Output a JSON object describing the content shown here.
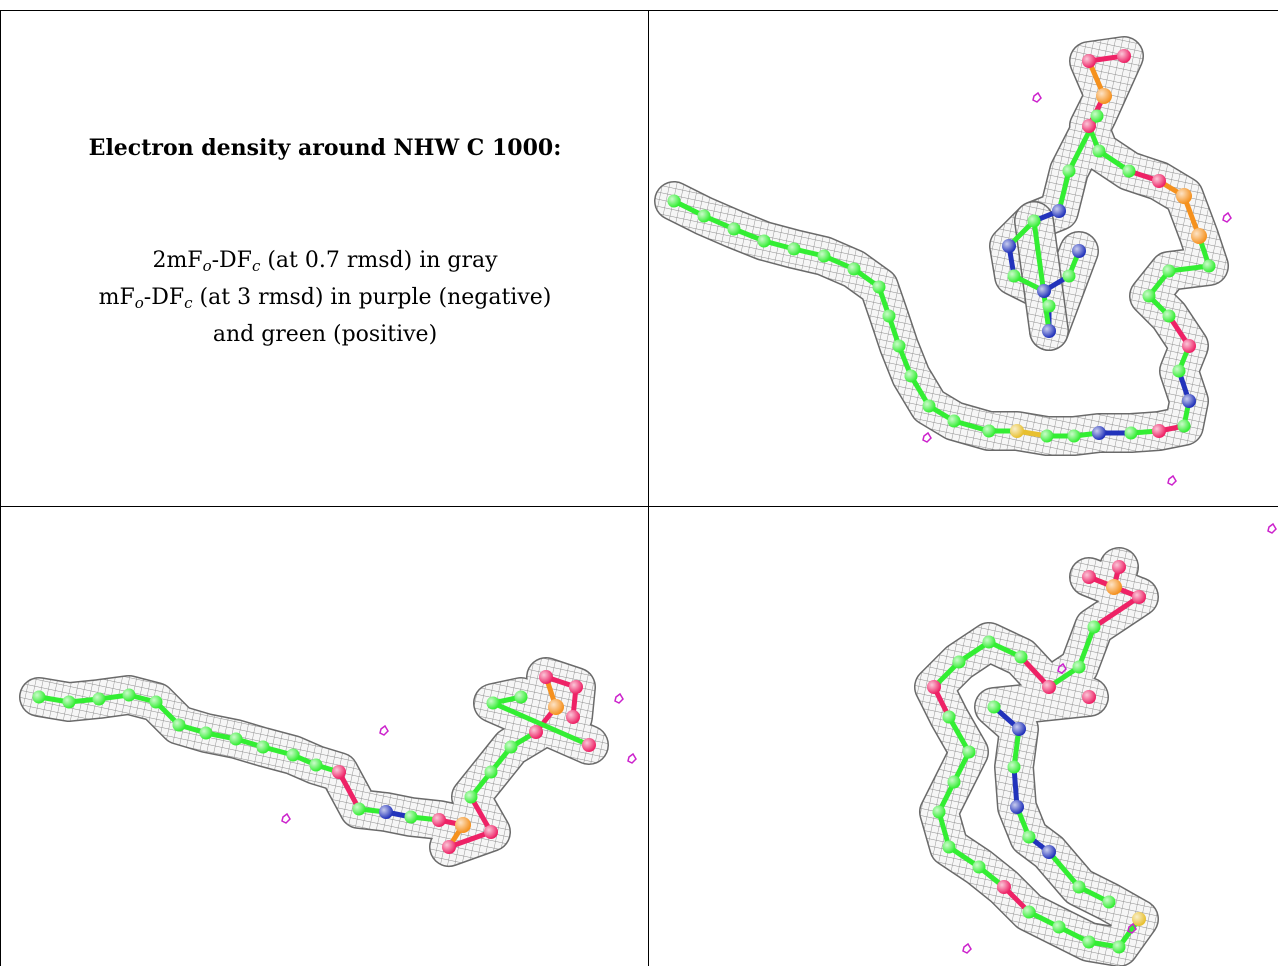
{
  "figure": {
    "title": "Electron density around NHW C 1000:",
    "legend": {
      "line1": {
        "pre": "2mF",
        "sub1": "o",
        "mid": "-DF",
        "sub2": "c",
        "post": " (at 0.7 rmsd) in gray"
      },
      "line2": {
        "pre": "mF",
        "sub1": "o",
        "mid": "-DF",
        "sub2": "c",
        "post": " (at 3 rmsd) in purple (negative)"
      },
      "line3": "and green (positive)"
    }
  },
  "views": [
    {
      "name": "view-top-right"
    },
    {
      "name": "view-bottom-left"
    },
    {
      "name": "view-bottom-right"
    }
  ],
  "colors": {
    "carbon": "#33ee33",
    "oxygen": "#ee2266",
    "nitrogen": "#2233bb",
    "phosphorus": "#f5911e",
    "sulfur": "#e8c030",
    "mesh": "#8c8c8c",
    "negative": "#cc22cc"
  }
}
